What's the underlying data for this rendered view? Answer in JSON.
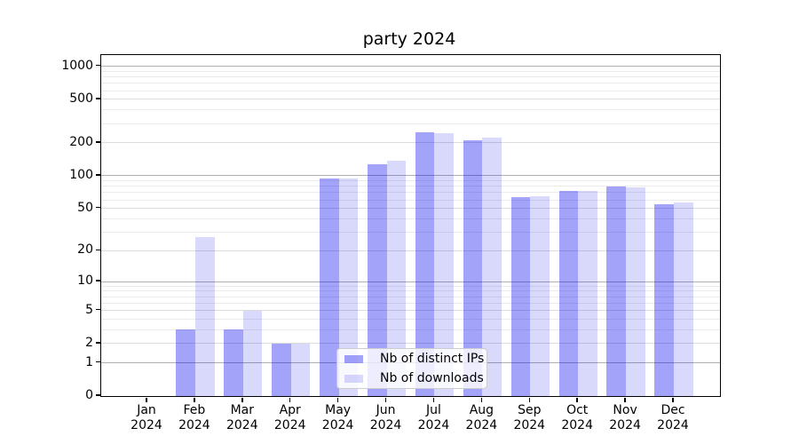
{
  "chart_data": {
    "type": "bar",
    "title": "party 2024",
    "categories": [
      "Jan",
      "Feb",
      "Mar",
      "Apr",
      "May",
      "Jun",
      "Jul",
      "Aug",
      "Sep",
      "Oct",
      "Nov",
      "Dec"
    ],
    "category_year": "2024",
    "series": [
      {
        "name": "Nb of distinct IPs",
        "color": "#0000ee5c",
        "values": [
          0,
          3,
          3,
          2,
          95,
          128,
          250,
          210,
          63,
          72,
          80,
          55
        ]
      },
      {
        "name": "Nb of downloads",
        "color": "#0000ee26",
        "values": [
          0,
          27,
          5,
          2,
          95,
          138,
          245,
          223,
          65,
          72,
          78,
          57
        ]
      }
    ],
    "yscale": {
      "type": "symlog",
      "transform": "ln(1+v)",
      "ymin": 0,
      "ymax": 1265
    },
    "yticks": {
      "labeled": [
        0,
        1,
        2,
        5,
        10,
        20,
        50,
        100,
        200,
        500,
        1000
      ],
      "major_grid": [
        1,
        10,
        100,
        1000
      ],
      "mid_grid": [
        2,
        5,
        20,
        50,
        200,
        500
      ],
      "minor_grid": [
        3,
        4,
        6,
        7,
        8,
        9,
        30,
        40,
        60,
        70,
        80,
        90,
        300,
        400,
        600,
        700,
        800,
        900
      ]
    },
    "grid_colors": {
      "major": "#b0b0b0",
      "mid": "#dcdcdc",
      "minor": "#ebebeb"
    },
    "axis_color": "#000000",
    "legend_position": "bottom-center-left"
  }
}
